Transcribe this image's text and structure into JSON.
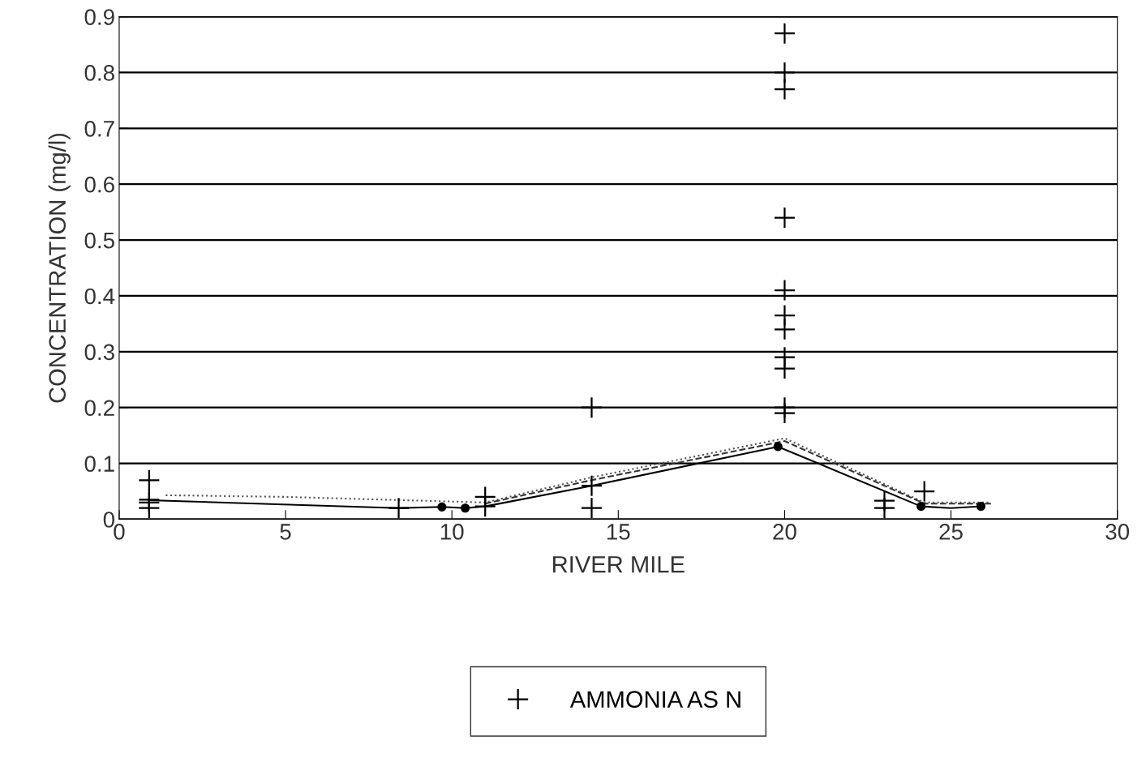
{
  "chart_data": {
    "type": "scatter",
    "xlabel": "RIVER MILE",
    "ylabel": "CONCENTRATION (mg/l)",
    "xlim": [
      0,
      30
    ],
    "xticks": [
      0,
      5,
      10,
      15,
      20,
      25,
      30
    ],
    "ylim": [
      0,
      0.9
    ],
    "yticks": [
      0,
      0.1,
      0.2,
      0.3,
      0.4,
      0.5,
      0.6,
      0.7,
      0.8,
      0.9
    ],
    "grid": "y",
    "legend": "bottom",
    "series": [
      {
        "name": "AMMONIA AS N",
        "type": "scatter",
        "marker": "cross",
        "color": "#000000",
        "x": [
          0.9,
          0.9,
          0.9,
          0.9,
          8.4,
          11,
          11,
          14.2,
          14.2,
          14.2,
          20,
          20,
          20,
          20,
          20,
          20,
          20,
          20,
          20,
          20,
          20,
          23,
          23,
          24.2
        ],
        "values": [
          0.07,
          0.035,
          0.03,
          0.02,
          0.02,
          0.04,
          0.023,
          0.2,
          0.06,
          0.02,
          0.87,
          0.8,
          0.77,
          0.54,
          0.41,
          0.365,
          0.34,
          0.29,
          0.27,
          0.2,
          0.19,
          0.033,
          0.02,
          0.05
        ]
      },
      {
        "type": "line",
        "line_style": "solid",
        "color": "#000000",
        "x": [
          0.9,
          8.4,
          9.7,
          10.4,
          11,
          14.2,
          19.8,
          24.1,
          25,
          25.9
        ],
        "values": [
          0.034,
          0.02,
          0.022,
          0.02,
          0.023,
          0.06,
          0.13,
          0.023,
          0.02,
          0.023
        ]
      },
      {
        "marker": "circle",
        "color": "#000000",
        "x": [
          9.7,
          10.4,
          19.8,
          24.1,
          25.9
        ],
        "values": [
          0.022,
          0.02,
          0.13,
          0.023,
          0.023
        ]
      },
      {
        "type": "line",
        "line_style": "dotted",
        "color": "#555555",
        "x": [
          1.4,
          5,
          11,
          14.2,
          20,
          24.2,
          26.2
        ],
        "values": [
          0.043,
          0.04,
          0.03,
          0.075,
          0.145,
          0.03,
          0.03
        ]
      },
      {
        "type": "line",
        "line_style": "dashed",
        "color": "#333333",
        "x": [
          11,
          14.2,
          20,
          24.2,
          26.2
        ],
        "values": [
          0.028,
          0.07,
          0.14,
          0.028,
          0.028
        ]
      }
    ]
  }
}
